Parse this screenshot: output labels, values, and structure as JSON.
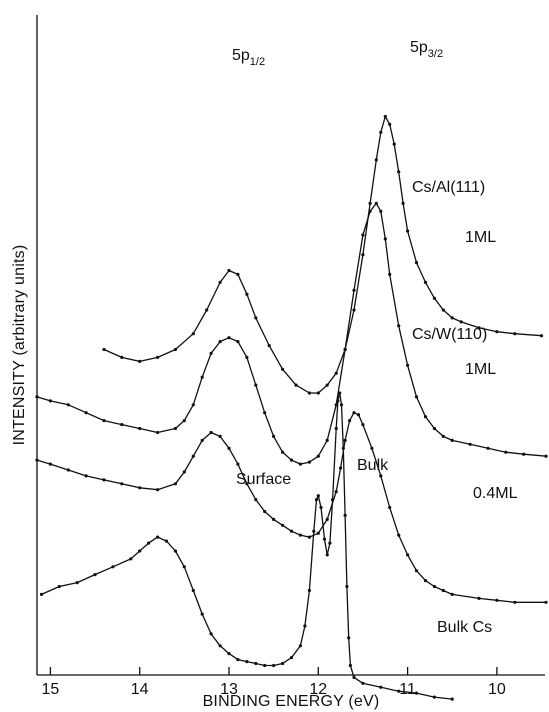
{
  "chart_data": {
    "type": "line",
    "title": "",
    "xlabel": "BINDING ENERGY (eV)",
    "ylabel": "INTENSITY (arbitrary units)",
    "xlim": [
      15.15,
      9.45
    ],
    "x_reversed": true,
    "xticks": [
      15,
      14,
      13,
      12,
      11,
      10
    ],
    "y_units": "arbitrary (stacked spectra, no numeric scale)",
    "grid": false,
    "legend": "none (curves labeled directly)",
    "annotations": {
      "p12": {
        "main": "5p",
        "sub": "1/2"
      },
      "p32": {
        "main": "5p",
        "sub": "3/2"
      },
      "surface": "Surface",
      "bulk": "Bulk"
    },
    "series": [
      {
        "labels": [
          "Cs/Al(111)",
          "1ML"
        ],
        "points": [
          [
            14.4,
            90
          ],
          [
            14.2,
            92
          ],
          [
            14.0,
            93
          ],
          [
            13.8,
            92
          ],
          [
            13.6,
            90
          ],
          [
            13.4,
            86
          ],
          [
            13.25,
            80
          ],
          [
            13.1,
            73
          ],
          [
            13.0,
            70
          ],
          [
            12.9,
            71
          ],
          [
            12.8,
            76
          ],
          [
            12.7,
            82
          ],
          [
            12.55,
            89
          ],
          [
            12.4,
            95
          ],
          [
            12.25,
            99
          ],
          [
            12.1,
            101
          ],
          [
            12.0,
            101
          ],
          [
            11.9,
            99
          ],
          [
            11.8,
            96
          ],
          [
            11.7,
            90
          ],
          [
            11.6,
            80
          ],
          [
            11.5,
            66
          ],
          [
            11.42,
            53
          ],
          [
            11.35,
            42
          ],
          [
            11.3,
            35
          ],
          [
            11.25,
            31
          ],
          [
            11.2,
            33
          ],
          [
            11.15,
            38
          ],
          [
            11.1,
            45
          ],
          [
            11.05,
            53
          ],
          [
            11.0,
            60
          ],
          [
            10.9,
            68
          ],
          [
            10.8,
            73
          ],
          [
            10.7,
            77
          ],
          [
            10.6,
            80
          ],
          [
            10.5,
            82
          ],
          [
            10.4,
            83
          ],
          [
            10.2,
            84.5
          ],
          [
            10.0,
            85.5
          ],
          [
            9.8,
            86
          ],
          [
            9.5,
            86.5
          ]
        ]
      },
      {
        "labels": [
          "Cs/W(110)",
          "1ML"
        ],
        "points": [
          [
            15.15,
            102
          ],
          [
            15.0,
            103
          ],
          [
            14.8,
            104
          ],
          [
            14.6,
            106
          ],
          [
            14.4,
            108
          ],
          [
            14.2,
            109
          ],
          [
            14.0,
            110
          ],
          [
            13.8,
            111
          ],
          [
            13.6,
            110
          ],
          [
            13.5,
            108
          ],
          [
            13.4,
            104
          ],
          [
            13.3,
            97
          ],
          [
            13.2,
            91
          ],
          [
            13.1,
            88
          ],
          [
            13.0,
            87
          ],
          [
            12.9,
            88
          ],
          [
            12.8,
            92
          ],
          [
            12.7,
            99
          ],
          [
            12.6,
            106
          ],
          [
            12.5,
            112
          ],
          [
            12.4,
            116
          ],
          [
            12.3,
            118
          ],
          [
            12.2,
            119
          ],
          [
            12.1,
            118.5
          ],
          [
            12.0,
            117
          ],
          [
            11.9,
            113
          ],
          [
            11.8,
            104
          ],
          [
            11.7,
            90
          ],
          [
            11.6,
            75
          ],
          [
            11.5,
            61
          ],
          [
            11.42,
            55
          ],
          [
            11.35,
            53
          ],
          [
            11.3,
            55
          ],
          [
            11.25,
            62
          ],
          [
            11.2,
            71
          ],
          [
            11.1,
            84
          ],
          [
            11.0,
            94
          ],
          [
            10.9,
            102
          ],
          [
            10.8,
            107
          ],
          [
            10.7,
            110
          ],
          [
            10.6,
            112
          ],
          [
            10.5,
            113
          ],
          [
            10.3,
            114
          ],
          [
            10.1,
            115
          ],
          [
            9.9,
            116
          ],
          [
            9.7,
            116.5
          ],
          [
            9.45,
            117
          ]
        ]
      },
      {
        "labels": [
          "0.4ML"
        ],
        "points": [
          [
            15.15,
            118
          ],
          [
            15.0,
            119
          ],
          [
            14.8,
            120.5
          ],
          [
            14.6,
            122
          ],
          [
            14.4,
            123
          ],
          [
            14.2,
            124
          ],
          [
            14.0,
            125
          ],
          [
            13.8,
            125.5
          ],
          [
            13.6,
            124
          ],
          [
            13.5,
            121
          ],
          [
            13.4,
            117
          ],
          [
            13.3,
            113
          ],
          [
            13.2,
            111
          ],
          [
            13.1,
            112
          ],
          [
            13.0,
            115
          ],
          [
            12.9,
            119
          ],
          [
            12.8,
            124
          ],
          [
            12.7,
            128
          ],
          [
            12.6,
            131
          ],
          [
            12.5,
            133
          ],
          [
            12.4,
            134.5
          ],
          [
            12.3,
            136
          ],
          [
            12.2,
            137
          ],
          [
            12.1,
            137.5
          ],
          [
            12.0,
            136.5
          ],
          [
            11.9,
            133
          ],
          [
            11.8,
            126
          ],
          [
            11.75,
            120
          ],
          [
            11.7,
            113
          ],
          [
            11.65,
            108
          ],
          [
            11.6,
            106
          ],
          [
            11.55,
            106.5
          ],
          [
            11.5,
            109
          ],
          [
            11.4,
            115
          ],
          [
            11.3,
            122
          ],
          [
            11.2,
            130
          ],
          [
            11.1,
            137
          ],
          [
            11.0,
            142
          ],
          [
            10.9,
            146
          ],
          [
            10.8,
            148.5
          ],
          [
            10.7,
            150
          ],
          [
            10.6,
            151
          ],
          [
            10.5,
            152
          ],
          [
            10.2,
            153
          ],
          [
            10.0,
            153.5
          ],
          [
            9.8,
            154
          ],
          [
            9.45,
            154
          ]
        ]
      },
      {
        "labels": [
          "Bulk Cs"
        ],
        "points": [
          [
            15.1,
            152
          ],
          [
            14.9,
            150
          ],
          [
            14.7,
            149
          ],
          [
            14.5,
            147
          ],
          [
            14.3,
            145
          ],
          [
            14.1,
            143
          ],
          [
            14.0,
            141
          ],
          [
            13.9,
            139
          ],
          [
            13.8,
            137.5
          ],
          [
            13.7,
            138.5
          ],
          [
            13.6,
            141
          ],
          [
            13.5,
            145
          ],
          [
            13.4,
            151
          ],
          [
            13.3,
            157
          ],
          [
            13.2,
            162
          ],
          [
            13.1,
            165
          ],
          [
            13.0,
            167
          ],
          [
            12.9,
            168.5
          ],
          [
            12.8,
            169
          ],
          [
            12.7,
            169.5
          ],
          [
            12.6,
            170
          ],
          [
            12.5,
            170
          ],
          [
            12.4,
            169.5
          ],
          [
            12.3,
            168
          ],
          [
            12.2,
            165
          ],
          [
            12.15,
            160
          ],
          [
            12.1,
            151
          ],
          [
            12.05,
            136
          ],
          [
            12.02,
            128
          ],
          [
            12.0,
            127
          ],
          [
            11.97,
            130
          ],
          [
            11.93,
            138
          ],
          [
            11.9,
            142
          ],
          [
            11.87,
            139
          ],
          [
            11.84,
            128
          ],
          [
            11.8,
            110
          ],
          [
            11.78,
            103
          ],
          [
            11.76,
            101
          ],
          [
            11.74,
            104
          ],
          [
            11.72,
            115
          ],
          [
            11.7,
            132
          ],
          [
            11.68,
            150
          ],
          [
            11.66,
            163
          ],
          [
            11.64,
            170
          ],
          [
            11.6,
            173
          ],
          [
            11.5,
            174.5
          ],
          [
            11.3,
            175.5
          ],
          [
            11.1,
            176.5
          ],
          [
            10.9,
            177
          ],
          [
            10.7,
            178
          ],
          [
            10.5,
            178.5
          ]
        ]
      }
    ]
  }
}
